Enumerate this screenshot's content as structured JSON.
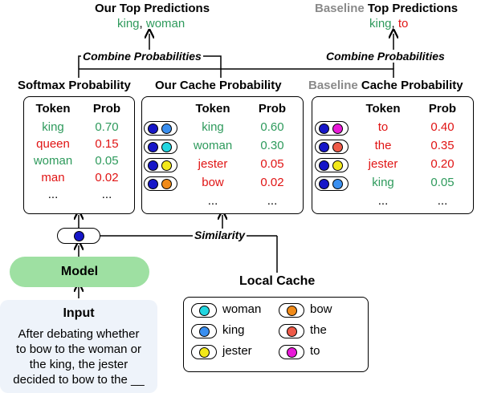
{
  "top_predictions": {
    "ours_title": "Our Top Predictions",
    "ours_word1": "king",
    "ours_sep": ",",
    "ours_word2": "woman",
    "baseline_prefix": "Baseline",
    "baseline_title_rest": "Top Predictions",
    "baseline_word1": "king",
    "baseline_sep": ",",
    "baseline_word2": "to"
  },
  "combine_label": "Combine Probabilities",
  "softmax": {
    "title": "Softmax Probability",
    "col_token": "Token",
    "col_prob": "Prob",
    "rows": [
      {
        "token": "king",
        "prob": "0.70",
        "color": "#2e9a5c"
      },
      {
        "token": "queen",
        "prob": "0.15",
        "color": "#e01414"
      },
      {
        "token": "woman",
        "prob": "0.05",
        "color": "#2e9a5c"
      },
      {
        "token": "man",
        "prob": "0.02",
        "color": "#e01414"
      },
      {
        "token": "...",
        "prob": "...",
        "color": "#000000"
      }
    ]
  },
  "our_cache": {
    "title": "Our Cache Probability",
    "col_token": "Token",
    "col_prob": "Prob",
    "rows": [
      {
        "token": "king",
        "prob": "0.60",
        "color": "#2e9a5c",
        "dots": [
          "blue",
          "light-blue"
        ]
      },
      {
        "token": "woman",
        "prob": "0.30",
        "color": "#2e9a5c",
        "dots": [
          "blue",
          "cyan"
        ]
      },
      {
        "token": "jester",
        "prob": "0.05",
        "color": "#e01414",
        "dots": [
          "blue",
          "yellow"
        ]
      },
      {
        "token": "bow",
        "prob": "0.02",
        "color": "#e01414",
        "dots": [
          "blue",
          "orange"
        ]
      },
      {
        "token": "...",
        "prob": "...",
        "color": "#000000"
      }
    ]
  },
  "baseline_cache": {
    "title_prefix": "Baseline",
    "title_rest": "Cache Probability",
    "col_token": "Token",
    "col_prob": "Prob",
    "rows": [
      {
        "token": "to",
        "prob": "0.40",
        "color": "#e01414",
        "dots": [
          "blue",
          "magenta"
        ]
      },
      {
        "token": "the",
        "prob": "0.35",
        "color": "#e01414",
        "dots": [
          "blue",
          "salmon"
        ]
      },
      {
        "token": "jester",
        "prob": "0.20",
        "color": "#e01414",
        "dots": [
          "blue",
          "yellow"
        ]
      },
      {
        "token": "king",
        "prob": "0.05",
        "color": "#2e9a5c",
        "dots": [
          "blue",
          "light-blue"
        ]
      },
      {
        "token": "...",
        "prob": "...",
        "color": "#000000"
      }
    ]
  },
  "similarity_label": "Similarity",
  "model_label": "Model",
  "input": {
    "title": "Input",
    "lines": [
      "After debating whether",
      "to bow to the woman or",
      "the king, the jester",
      "decided to bow to the __"
    ]
  },
  "local_cache": {
    "title": "Local Cache",
    "items": [
      {
        "word": "woman",
        "dot": "cyan"
      },
      {
        "word": "bow",
        "dot": "orange"
      },
      {
        "word": "king",
        "dot": "light-blue"
      },
      {
        "word": "the",
        "dot": "salmon"
      },
      {
        "word": "jester",
        "dot": "yellow"
      },
      {
        "word": "to",
        "dot": "magenta"
      }
    ]
  },
  "colors": {
    "green": "#2e9a5c",
    "red": "#e01414",
    "grey": "#8a8a8a",
    "model_fill": "#9ee0a2",
    "input_fill": "#eef3fa",
    "dot_blue": "#1616c8",
    "dot_light_blue": "#3a8ff0",
    "dot_cyan": "#22d6e0",
    "dot_yellow": "#f2e81a",
    "dot_orange": "#f08a18",
    "dot_salmon": "#ee5a48",
    "dot_magenta": "#e81ad8"
  }
}
